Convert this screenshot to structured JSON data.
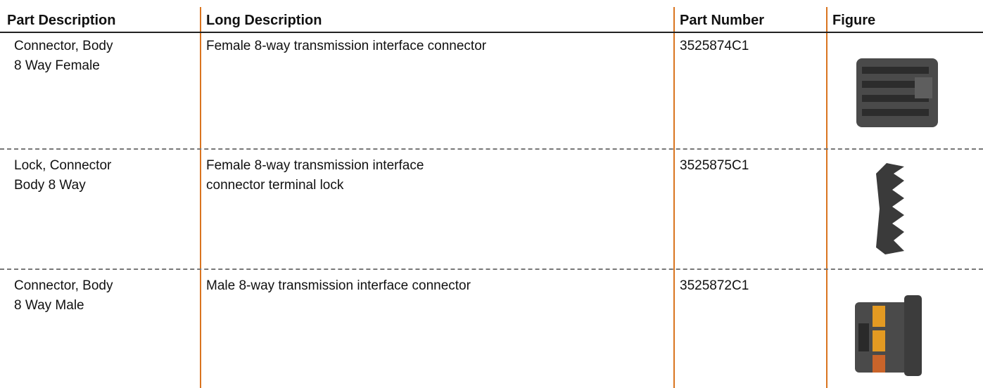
{
  "table": {
    "headers": [
      "Part Description",
      "Long Description",
      "Part Number",
      "Figure"
    ],
    "rows": [
      [
        "Connector, Body\n8 Way Female",
        "Female 8-way transmission interface connector",
        "3525874C1"
      ],
      [
        "Lock, Connector\nBody 8 Way",
        "Female 8-way transmission interface\nconnector terminal lock",
        "3525875C1"
      ],
      [
        "Connector, Body\n8 Way Male",
        "Male 8-way transmission interface connector",
        "3525872C1"
      ]
    ]
  }
}
